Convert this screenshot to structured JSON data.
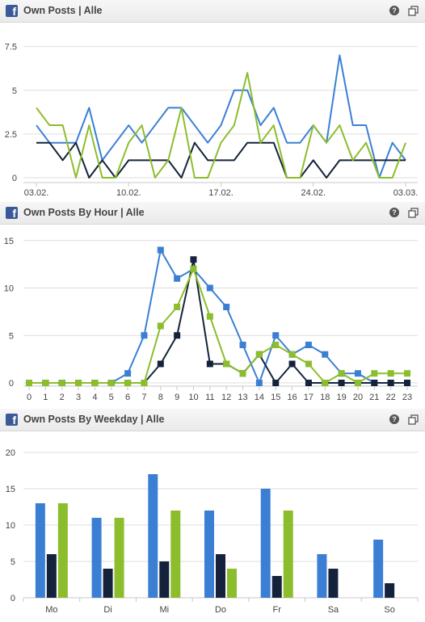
{
  "panels": [
    {
      "title": "Own Posts | Alle",
      "icon": "facebook-icon",
      "help": "?"
    },
    {
      "title": "Own Posts By Hour | Alle",
      "icon": "facebook-icon",
      "help": "?"
    },
    {
      "title": "Own Posts By Weekday | Alle",
      "icon": "facebook-icon",
      "help": "?"
    }
  ],
  "colors": {
    "blue": "#3b7fd4",
    "navy": "#14233b",
    "green": "#8cbd2c",
    "grid": "#dddddd"
  },
  "chart_data": [
    {
      "type": "line",
      "x_tick_labels": [
        "03.02.",
        "10.02.",
        "17.02.",
        "24.02.",
        "03.03."
      ],
      "y_ticks": [
        "0",
        "2.5",
        "5",
        "7.5"
      ],
      "ylim": [
        0,
        8.5
      ],
      "series": [
        {
          "color": "blue",
          "values": [
            3,
            2,
            2,
            2,
            4,
            1,
            2,
            3,
            2,
            3,
            4,
            4,
            3,
            2,
            3,
            5,
            5,
            3,
            4,
            2,
            2,
            3,
            2,
            7,
            3,
            3,
            0,
            2,
            1
          ]
        },
        {
          "color": "navy",
          "values": [
            2,
            2,
            1,
            2,
            0,
            1,
            0,
            1,
            1,
            1,
            1,
            0,
            2,
            1,
            1,
            1,
            2,
            2,
            2,
            0,
            0,
            1,
            0,
            1,
            1,
            1,
            1,
            1,
            1
          ]
        },
        {
          "color": "green",
          "values": [
            4,
            3,
            3,
            0,
            3,
            0,
            0,
            2,
            3,
            0,
            1,
            4,
            0,
            0,
            2,
            3,
            6,
            2,
            3,
            0,
            0,
            3,
            2,
            3,
            1,
            2,
            0,
            0,
            2
          ]
        }
      ]
    },
    {
      "type": "line",
      "categories": [
        "0",
        "1",
        "2",
        "3",
        "4",
        "5",
        "6",
        "7",
        "8",
        "9",
        "10",
        "11",
        "12",
        "13",
        "14",
        "15",
        "16",
        "17",
        "18",
        "19",
        "20",
        "21",
        "22",
        "23"
      ],
      "y_ticks": [
        "0",
        "5",
        "10",
        "15"
      ],
      "ylim": [
        0,
        16
      ],
      "series": [
        {
          "color": "blue",
          "values": [
            0,
            0,
            0,
            0,
            0,
            0,
            1,
            5,
            14,
            11,
            12,
            10,
            8,
            4,
            0,
            5,
            3,
            4,
            3,
            1,
            1,
            0,
            0,
            0
          ]
        },
        {
          "color": "navy",
          "values": [
            0,
            0,
            0,
            0,
            0,
            0,
            0,
            0,
            2,
            5,
            13,
            2,
            2,
            1,
            3,
            0,
            2,
            0,
            0,
            0,
            0,
            0,
            0,
            0
          ]
        },
        {
          "color": "green",
          "values": [
            0,
            0,
            0,
            0,
            0,
            0,
            0,
            0,
            6,
            8,
            12,
            7,
            2,
            1,
            3,
            4,
            3,
            2,
            0,
            1,
            0,
            1,
            1,
            1
          ]
        }
      ]
    },
    {
      "type": "bar",
      "categories": [
        "Mo",
        "Di",
        "Mi",
        "Do",
        "Fr",
        "Sa",
        "So"
      ],
      "y_ticks": [
        "0",
        "5",
        "10",
        "15",
        "20"
      ],
      "ylim": [
        0,
        20
      ],
      "series": [
        {
          "color": "blue",
          "values": [
            13,
            11,
            17,
            12,
            15,
            6,
            8
          ]
        },
        {
          "color": "navy",
          "values": [
            6,
            4,
            5,
            6,
            3,
            4,
            2
          ]
        },
        {
          "color": "green",
          "values": [
            13,
            11,
            12,
            4,
            12,
            0,
            0
          ]
        }
      ]
    }
  ]
}
